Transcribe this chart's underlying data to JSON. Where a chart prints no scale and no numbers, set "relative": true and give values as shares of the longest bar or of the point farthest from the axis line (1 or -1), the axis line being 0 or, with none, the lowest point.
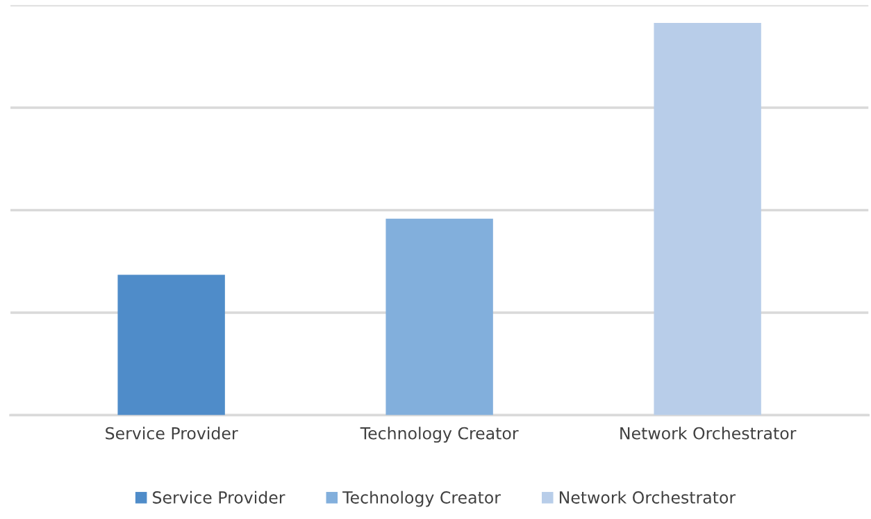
{
  "chart_data": {
    "type": "bar",
    "relative": true,
    "categories": [
      "Service Provider",
      "Technology Creator",
      "Network Orchestrator"
    ],
    "series": [
      {
        "name": "Service Provider",
        "color": "#4f8cc9",
        "values": [
          0.358,
          null,
          null
        ]
      },
      {
        "name": "Technology Creator",
        "color": "#82afdc",
        "values": [
          null,
          0.501,
          null
        ]
      },
      {
        "name": "Network Orchestrator",
        "color": "#b8cde9",
        "values": [
          null,
          null,
          1
        ]
      }
    ],
    "grid": "y",
    "legend": "bottom",
    "tick_labels": "x"
  }
}
